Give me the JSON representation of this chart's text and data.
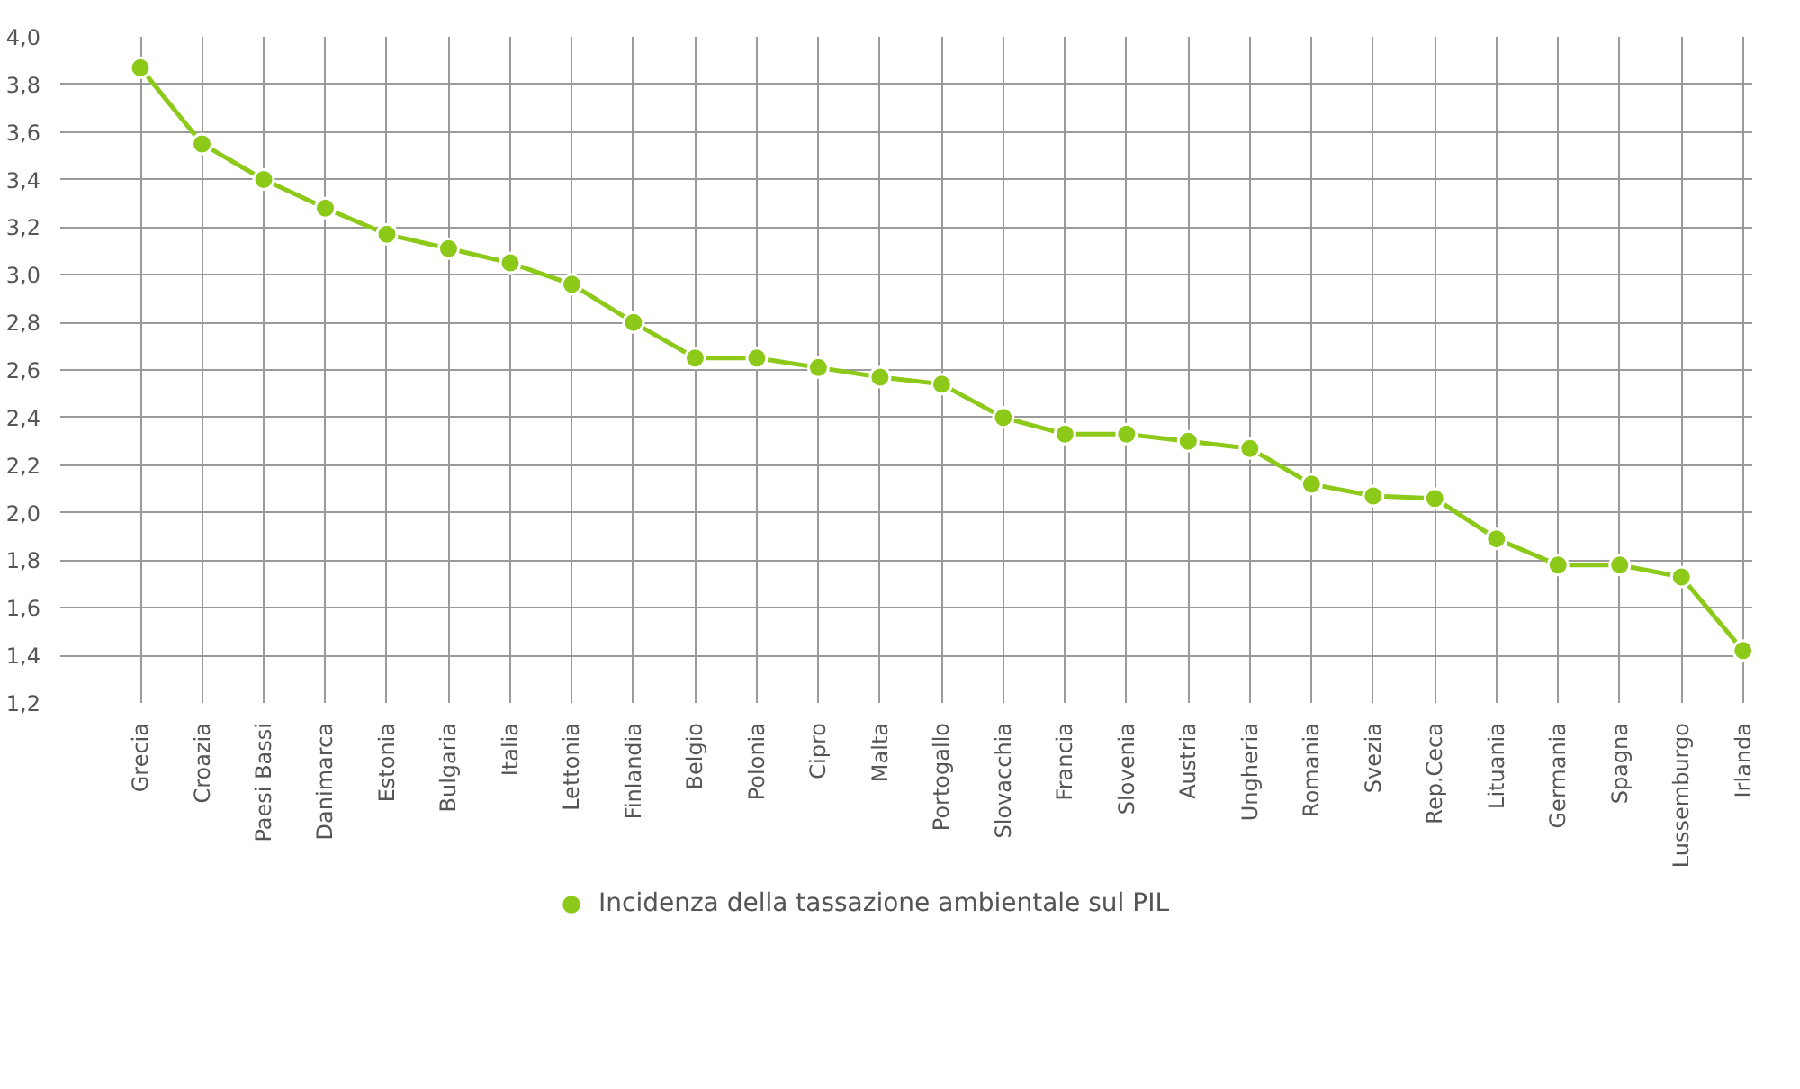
{
  "chart_data": {
    "type": "line",
    "categories": [
      "Grecia",
      "Croazia",
      "Paesi Bassi",
      "Danimarca",
      "Estonia",
      "Bulgaria",
      "Italia",
      "Lettonia",
      "Finlandia",
      "Belgio",
      "Polonia",
      "Cipro",
      "Malta",
      "Portogallo",
      "Slovacchia",
      "Francia",
      "Slovenia",
      "Austria",
      "Ungheria",
      "Romania",
      "Svezia",
      "Rep.Ceca",
      "Lituania",
      "Germania",
      "Spagna",
      "Lussemburgo",
      "Irlanda"
    ],
    "series": [
      {
        "name": "Incidenza della tassazione ambientale sul PIL",
        "color": "#8cc919",
        "values": [
          3.87,
          3.55,
          3.4,
          3.28,
          3.17,
          3.11,
          3.05,
          2.96,
          2.8,
          2.65,
          2.65,
          2.61,
          2.57,
          2.54,
          2.4,
          2.33,
          2.33,
          2.3,
          2.27,
          2.12,
          2.07,
          2.06,
          1.89,
          1.78,
          1.78,
          1.73,
          1.42
        ]
      }
    ],
    "ylim": [
      1.2,
      4.0
    ],
    "yticks": [
      {
        "value": 1.2,
        "label": "1,2"
      },
      {
        "value": 1.4,
        "label": "1,4"
      },
      {
        "value": 1.6,
        "label": "1,6"
      },
      {
        "value": 1.8,
        "label": "1,8"
      },
      {
        "value": 2.0,
        "label": "2,0"
      },
      {
        "value": 2.2,
        "label": "2,2"
      },
      {
        "value": 2.4,
        "label": "2,4"
      },
      {
        "value": 2.6,
        "label": "2,6"
      },
      {
        "value": 2.8,
        "label": "2,8"
      },
      {
        "value": 3.0,
        "label": "3,0"
      },
      {
        "value": 3.2,
        "label": "3,2"
      },
      {
        "value": 3.4,
        "label": "3,4"
      },
      {
        "value": 3.6,
        "label": "3,6"
      },
      {
        "value": 3.8,
        "label": "3,8"
      },
      {
        "value": 4.0,
        "label": "4,0"
      }
    ],
    "grid": true,
    "legend": "bottom",
    "marker": "circle",
    "line_style": "solid"
  }
}
